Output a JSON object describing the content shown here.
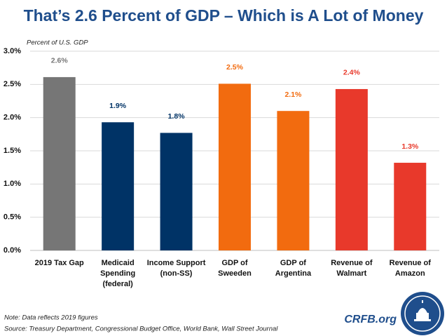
{
  "chart_data": {
    "type": "bar",
    "title": "That’s 2.6 Percent of GDP – Which is A Lot of Money",
    "y_label": "Percent of U.S. GDP",
    "categories": [
      "2019 Tax Gap",
      "Medicaid Spending (federal)",
      "Income Support (non-SS)",
      "GDP of Sweeden",
      "GDP of Argentina",
      "Revenue of Walmart",
      "Revenue of Amazon"
    ],
    "values": [
      2.61,
      1.93,
      1.77,
      2.51,
      2.1,
      2.43,
      1.32
    ],
    "value_labels": [
      "2.6%",
      "1.9%",
      "1.8%",
      "2.5%",
      "2.1%",
      "2.4%",
      "1.3%"
    ],
    "colors": [
      "#767676",
      "#003366",
      "#003366",
      "#f26b0f",
      "#f26b0f",
      "#e8392b",
      "#e8392b"
    ],
    "label_colors": [
      "#767676",
      "#003366",
      "#003366",
      "#f26b0f",
      "#f26b0f",
      "#e8392b",
      "#e8392b"
    ],
    "ylim": [
      0,
      3
    ],
    "yticks": [
      {
        "value": 0,
        "label": "0.0%"
      },
      {
        "value": 0.5,
        "label": "0.5%"
      },
      {
        "value": 1,
        "label": "1.0%"
      },
      {
        "value": 1.5,
        "label": "1.5%"
      },
      {
        "value": 2,
        "label": "2.0%"
      },
      {
        "value": 2.5,
        "label": "2.5%"
      },
      {
        "value": 3,
        "label": "3.0%"
      }
    ],
    "grid": true,
    "note": "Note: Data reflects 2019 figures",
    "source": "Source: Treasury Department, Congressional Budget Office, World Bank, Wall Street Journal",
    "brand": "CRFB.org"
  }
}
